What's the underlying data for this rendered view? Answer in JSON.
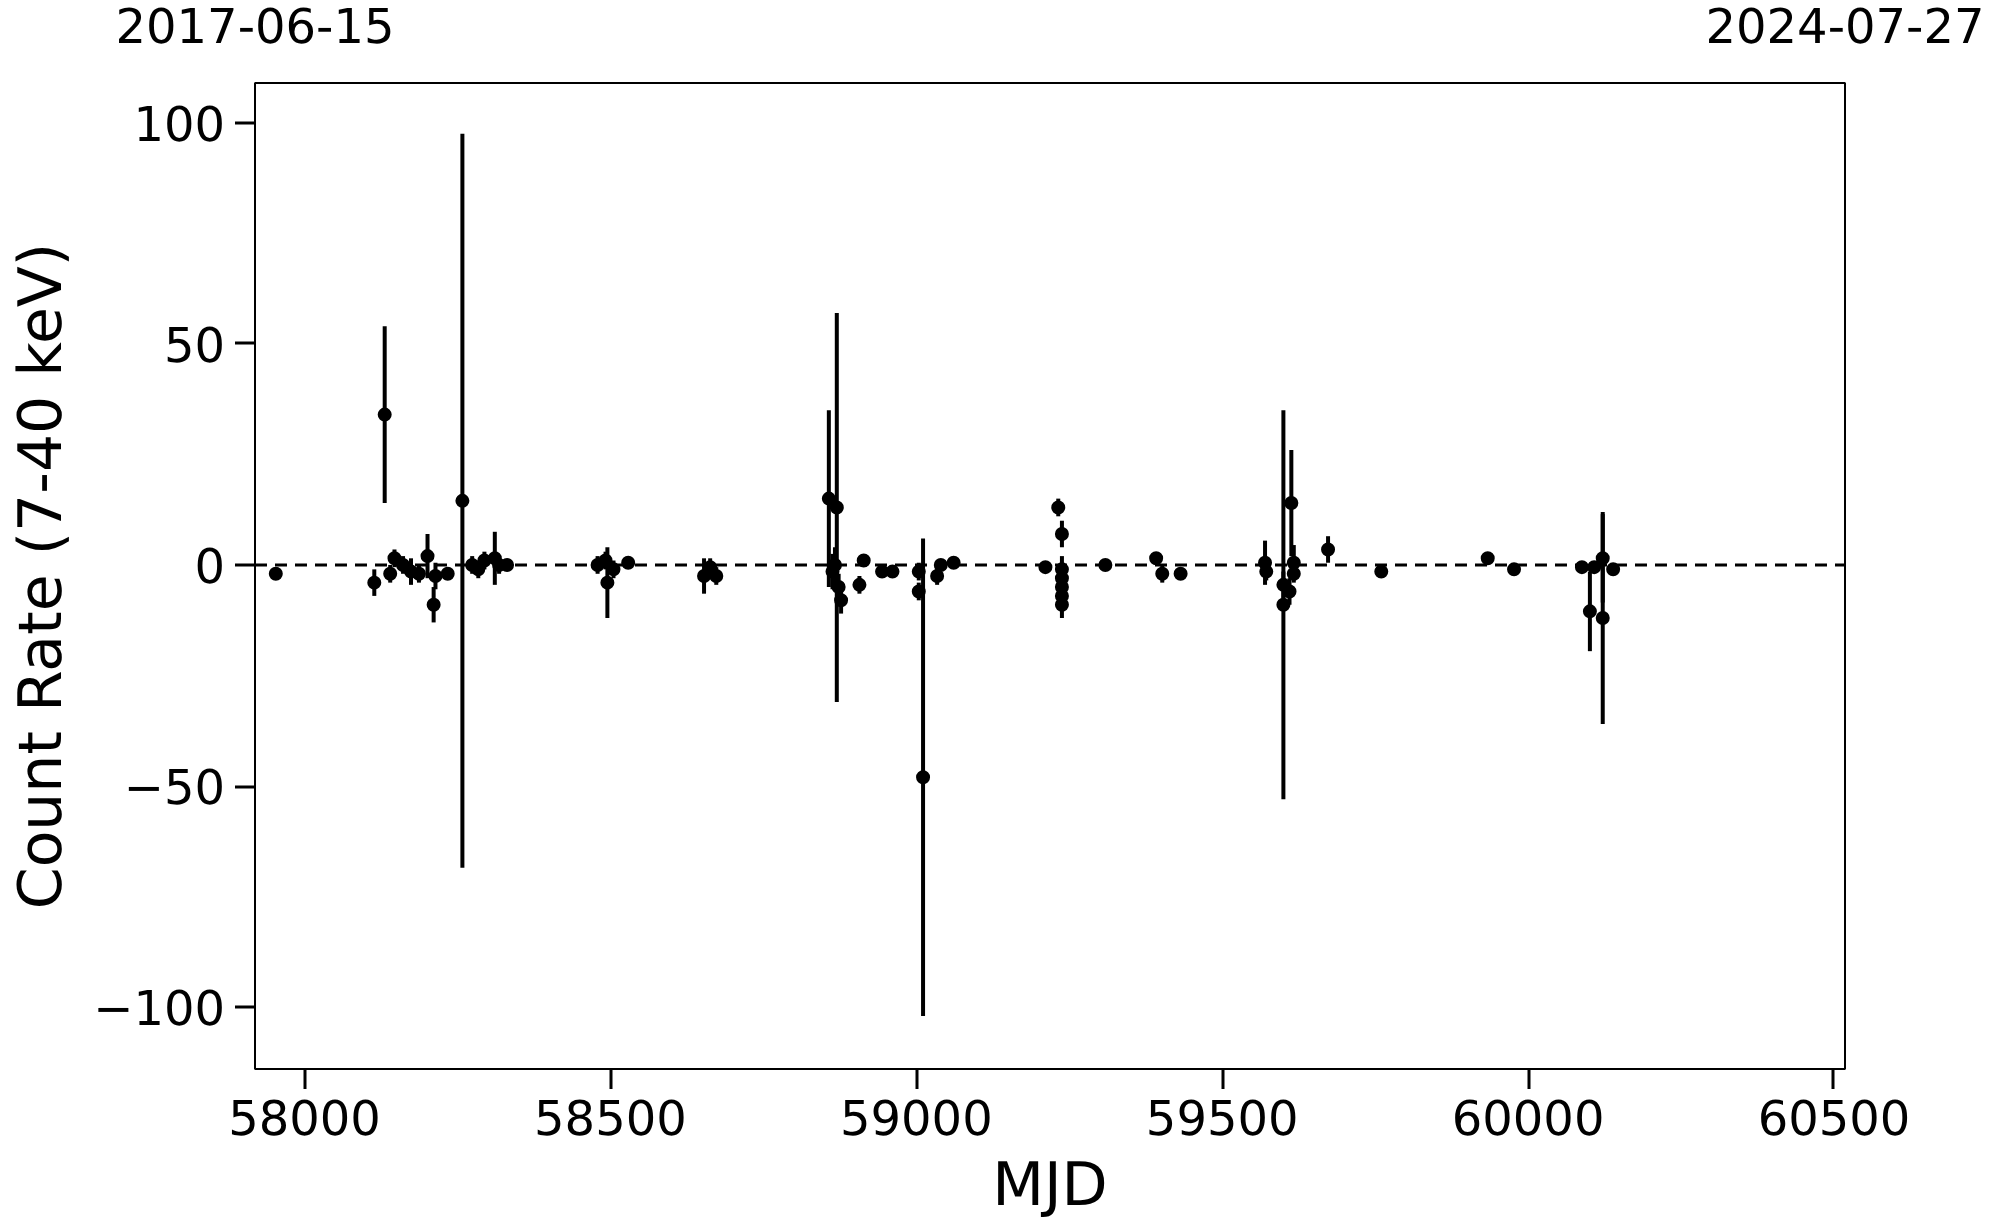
{
  "chart_data": {
    "type": "scatter",
    "xlabel": "MJD",
    "ylabel": "Count Rate (7-40 keV)",
    "x": [
      57953,
      58114,
      58131,
      58140,
      58147,
      58161,
      58174,
      58187,
      58201,
      58211,
      58214,
      58234,
      58258,
      58274,
      58284,
      58294,
      58311,
      58318,
      58331,
      58479,
      58492,
      58495,
      58505,
      58529,
      58653,
      58663,
      58673,
      58857,
      58870,
      58863,
      58873,
      58877,
      58867,
      58914,
      58907,
      58944,
      58961,
      59004,
      59004,
      59011,
      59034,
      59040,
      59061,
      59232,
      59238,
      59238,
      59238,
      59238,
      59238,
      59238,
      59211,
      59309,
      59392,
      59402,
      59432,
      59570,
      59572,
      59600,
      59600,
      59610,
      59613,
      59617,
      59617,
      59673,
      59760,
      59934,
      59977,
      60088,
      60108,
      60101,
      60122,
      60122,
      60139
    ],
    "series": [
      {
        "color": "#000000",
        "values": [
          -2,
          -4,
          34,
          -2,
          1.5,
          0,
          -1.5,
          -2,
          2,
          -9,
          -2.5,
          -2,
          14.5,
          0,
          -1,
          1,
          1.5,
          0,
          0,
          0,
          1,
          -4,
          -1,
          0.5,
          -2.5,
          -0.5,
          -2.5,
          15,
          13,
          -1.5,
          -5,
          -8,
          0,
          1,
          -4.5,
          -1.5,
          -1.5,
          -1.5,
          -6,
          -48,
          -2.5,
          0,
          0.5,
          13,
          7,
          -1,
          -3,
          -5,
          -7,
          -9,
          -0.5,
          0,
          1.5,
          -2,
          -2,
          0.5,
          -1.5,
          -9,
          -4.5,
          -6,
          14,
          0.5,
          -2,
          3.5,
          -1.5,
          1.5,
          -1,
          -0.5,
          -0.5,
          -10.5,
          1.5,
          -12,
          -1
        ],
        "errors": [
          1,
          3,
          20,
          2,
          2,
          2,
          3,
          2,
          5,
          4,
          3,
          1,
          83,
          2,
          2,
          2,
          6,
          2,
          1,
          2,
          2,
          8,
          2,
          1,
          4,
          2,
          2,
          20,
          44,
          4,
          3,
          3,
          4,
          1,
          2,
          1,
          1,
          2,
          2,
          54,
          2,
          1,
          1,
          2,
          3,
          3,
          3,
          3,
          3,
          3,
          1,
          1,
          1,
          2,
          1,
          5,
          2,
          44,
          3,
          3,
          12,
          4,
          2,
          3,
          1,
          1,
          1,
          1,
          1,
          9,
          10,
          24,
          1
        ]
      }
    ],
    "marker": "circle",
    "grid": false,
    "xlim": [
      57919,
      60518
    ],
    "xticks": [
      58000,
      58500,
      59000,
      59500,
      60000,
      60500
    ],
    "ylim": [
      -114,
      109
    ],
    "yticks": [
      {
        "value": -100,
        "label": "−100"
      },
      {
        "value": -50,
        "label": "−50"
      },
      0,
      50,
      100
    ],
    "x2lim": [
      "2017-06-15",
      "2024-07-27"
    ],
    "x2ticks": [
      {
        "value": "2017-06-15",
        "label": "2017-06-15"
      },
      {
        "value": "2024-07-27",
        "label": "2024-07-27"
      }
    ],
    "ref_lines": [
      {
        "axis": "y",
        "value": 0,
        "label": null,
        "color": "#000000",
        "line_style": "dashed"
      }
    ]
  }
}
